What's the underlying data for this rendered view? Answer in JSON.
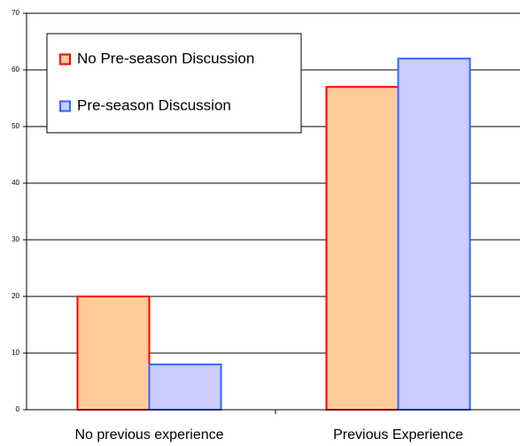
{
  "chart_data": {
    "type": "bar",
    "categories": [
      "No previous experience",
      "Previous Experience"
    ],
    "series": [
      {
        "name": "No Pre-season Discussion",
        "color": "#FFCC99",
        "edge_color": "#FF0000",
        "values": [
          20,
          57
        ]
      },
      {
        "name": "Pre-season Discussion",
        "color": "#CCCCFF",
        "edge_color": "#3366FF",
        "values": [
          8,
          62
        ]
      }
    ],
    "ylim": [
      0,
      70
    ],
    "yticks": [
      0,
      10,
      20,
      30,
      40,
      50,
      60,
      70
    ],
    "grid": true,
    "legend_position": "upper left"
  }
}
